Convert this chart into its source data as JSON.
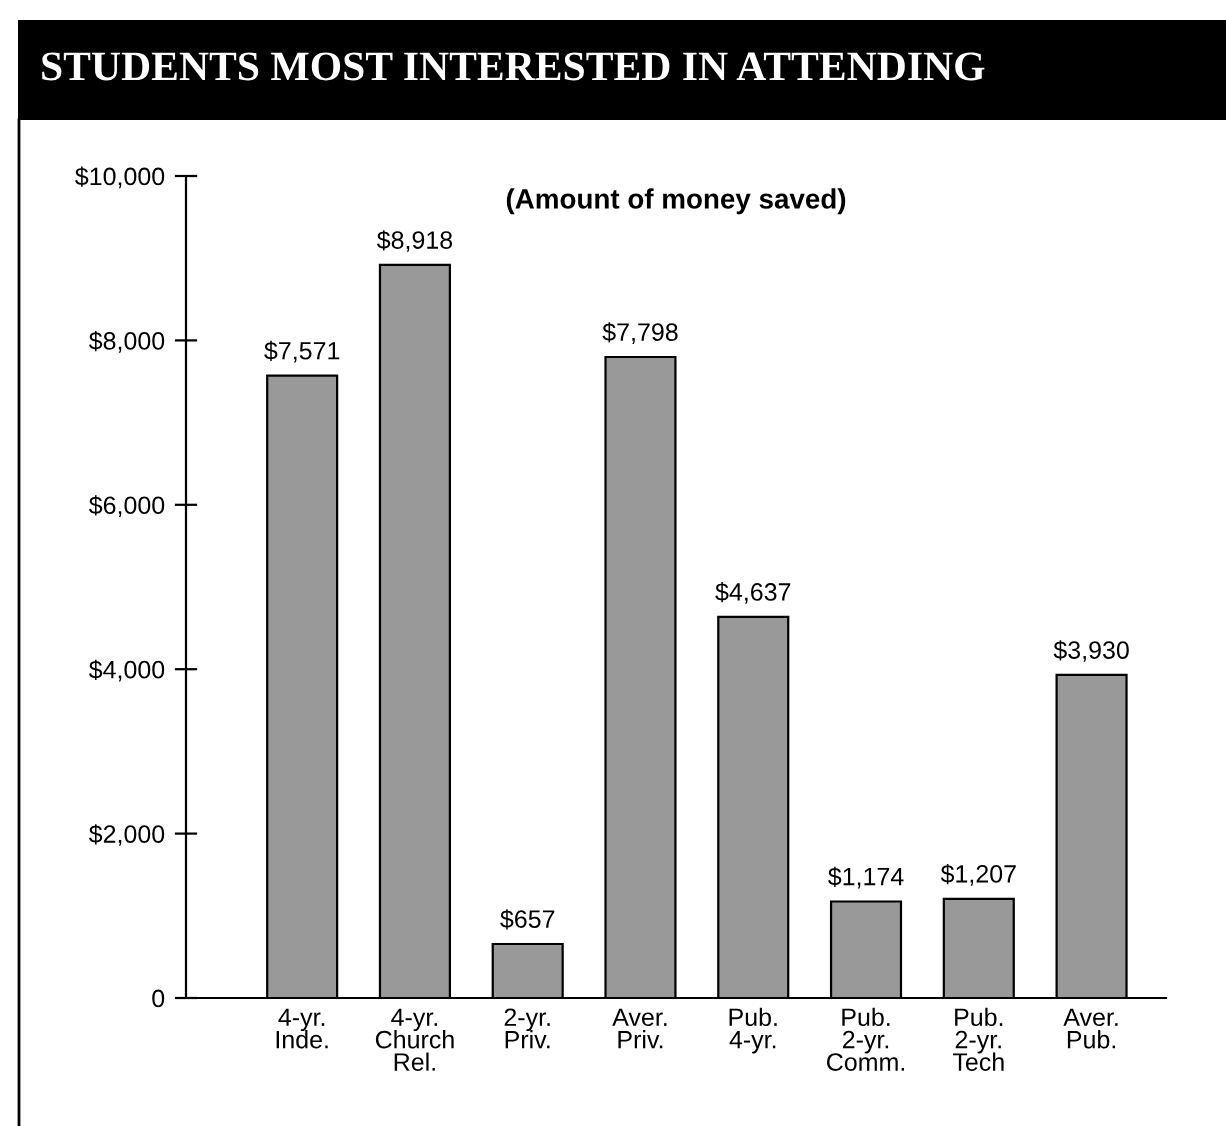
{
  "chart_data": {
    "type": "bar",
    "title": "STUDENTS MOST INTERESTED IN ATTENDING",
    "subtitle": "(Amount of money saved)",
    "categories": [
      "4-yr.\nInde.",
      "4-yr.\nChurch\nRel.",
      "2-yr.\nPriv.",
      "Aver.\nPriv.",
      "Pub.\n4-yr.",
      "Pub.\n2-yr.\nComm.",
      "Pub.\n2-yr.\nTech",
      "Aver.\nPub."
    ],
    "values": [
      7571,
      8918,
      657,
      7798,
      4637,
      1174,
      1207,
      3930
    ],
    "value_labels": [
      "$7,571",
      "$8,918",
      "$657",
      "$7,798",
      "$4,637",
      "$1,174",
      "$1,207",
      "$3,930"
    ],
    "color": "#999999",
    "ylim": [
      0,
      10000
    ],
    "yticks": [
      {
        "value": 0,
        "label": "0"
      },
      {
        "value": 2000,
        "label": "$2,000"
      },
      {
        "value": 4000,
        "label": "$4,000"
      },
      {
        "value": 6000,
        "label": "$6,000"
      },
      {
        "value": 8000,
        "label": "$8,000"
      },
      {
        "value": 10000,
        "label": "$10,000"
      }
    ],
    "grid": false,
    "legend": false
  }
}
